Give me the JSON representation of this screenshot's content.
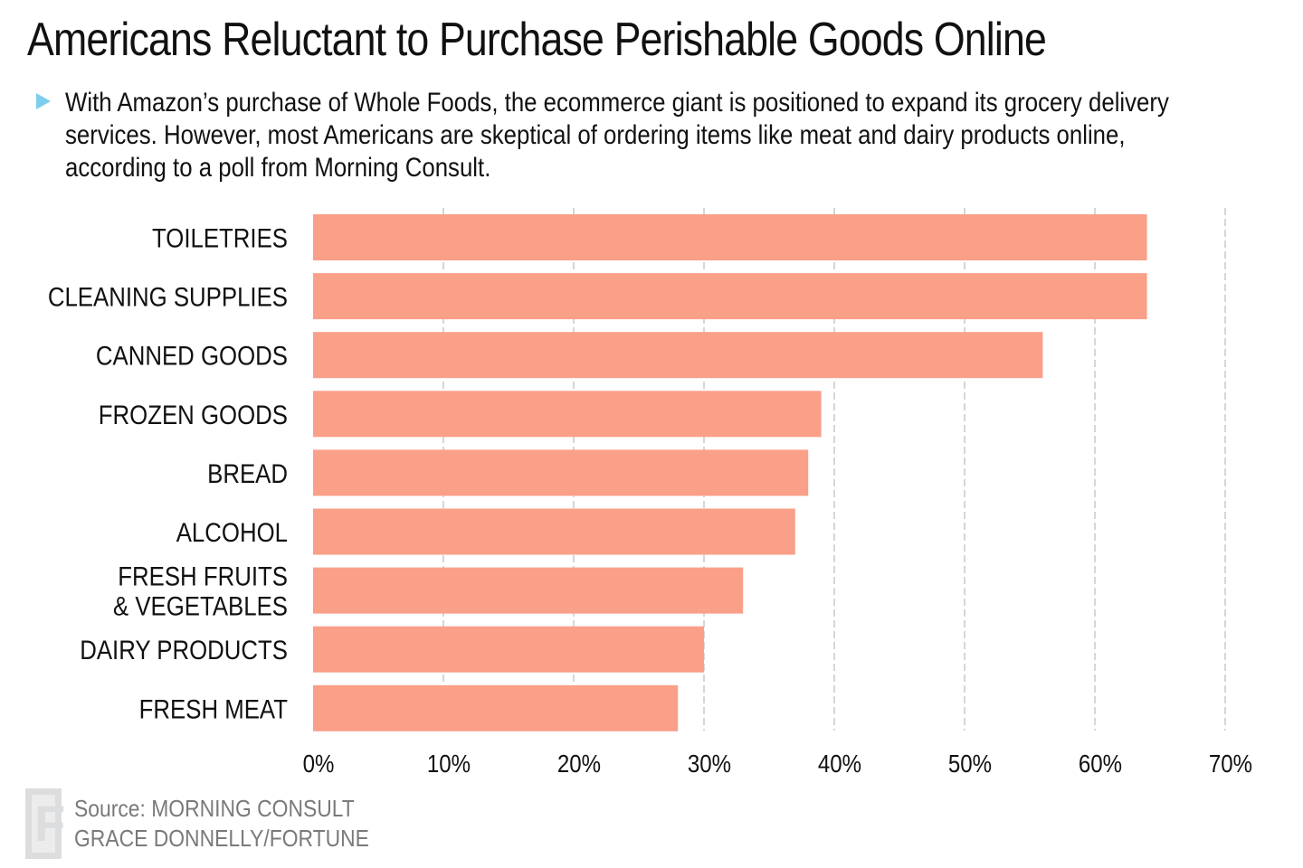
{
  "header": {
    "title": "Americans Reluctant to Purchase Perishable Goods Online",
    "subtitle": "With Amazon’s purchase of Whole Foods, the ecommerce giant is positioned to expand its grocery delivery services. However, most Americans are skeptical of ordering items like meat and dairy products online, according to a poll from Morning Consult.",
    "bullet_icon": "triangle-right-icon",
    "bullet_color": "#7fcdee"
  },
  "footer": {
    "logo_letter": "F",
    "source": "Source: MORNING CONSULT",
    "credit": "GRACE DONNELLY/FORTUNE"
  },
  "chart_data": {
    "type": "bar",
    "orientation": "horizontal",
    "title": "Americans Reluctant to Purchase Perishable Goods Online",
    "xlabel": "",
    "ylabel": "",
    "categories": [
      "TOILETRIES",
      "CLEANING SUPPLIES",
      "CANNED GOODS",
      "FROZEN GOODS",
      "BREAD",
      "ALCOHOL",
      "FRESH FRUITS\n& VEGETABLES",
      "DAIRY PRODUCTS",
      "FRESH MEAT"
    ],
    "values": [
      64,
      64,
      56,
      39,
      38,
      37,
      33,
      30,
      28
    ],
    "unit": "%",
    "xlim": [
      0,
      70
    ],
    "xticks": [
      0,
      10,
      20,
      30,
      40,
      50,
      60,
      70
    ],
    "xtick_labels": [
      "0%",
      "10%",
      "20%",
      "30%",
      "40%",
      "50%",
      "60%",
      "70%"
    ],
    "grid": "vertical dashed",
    "bar_color": "#fa9f88",
    "legend": "none"
  }
}
